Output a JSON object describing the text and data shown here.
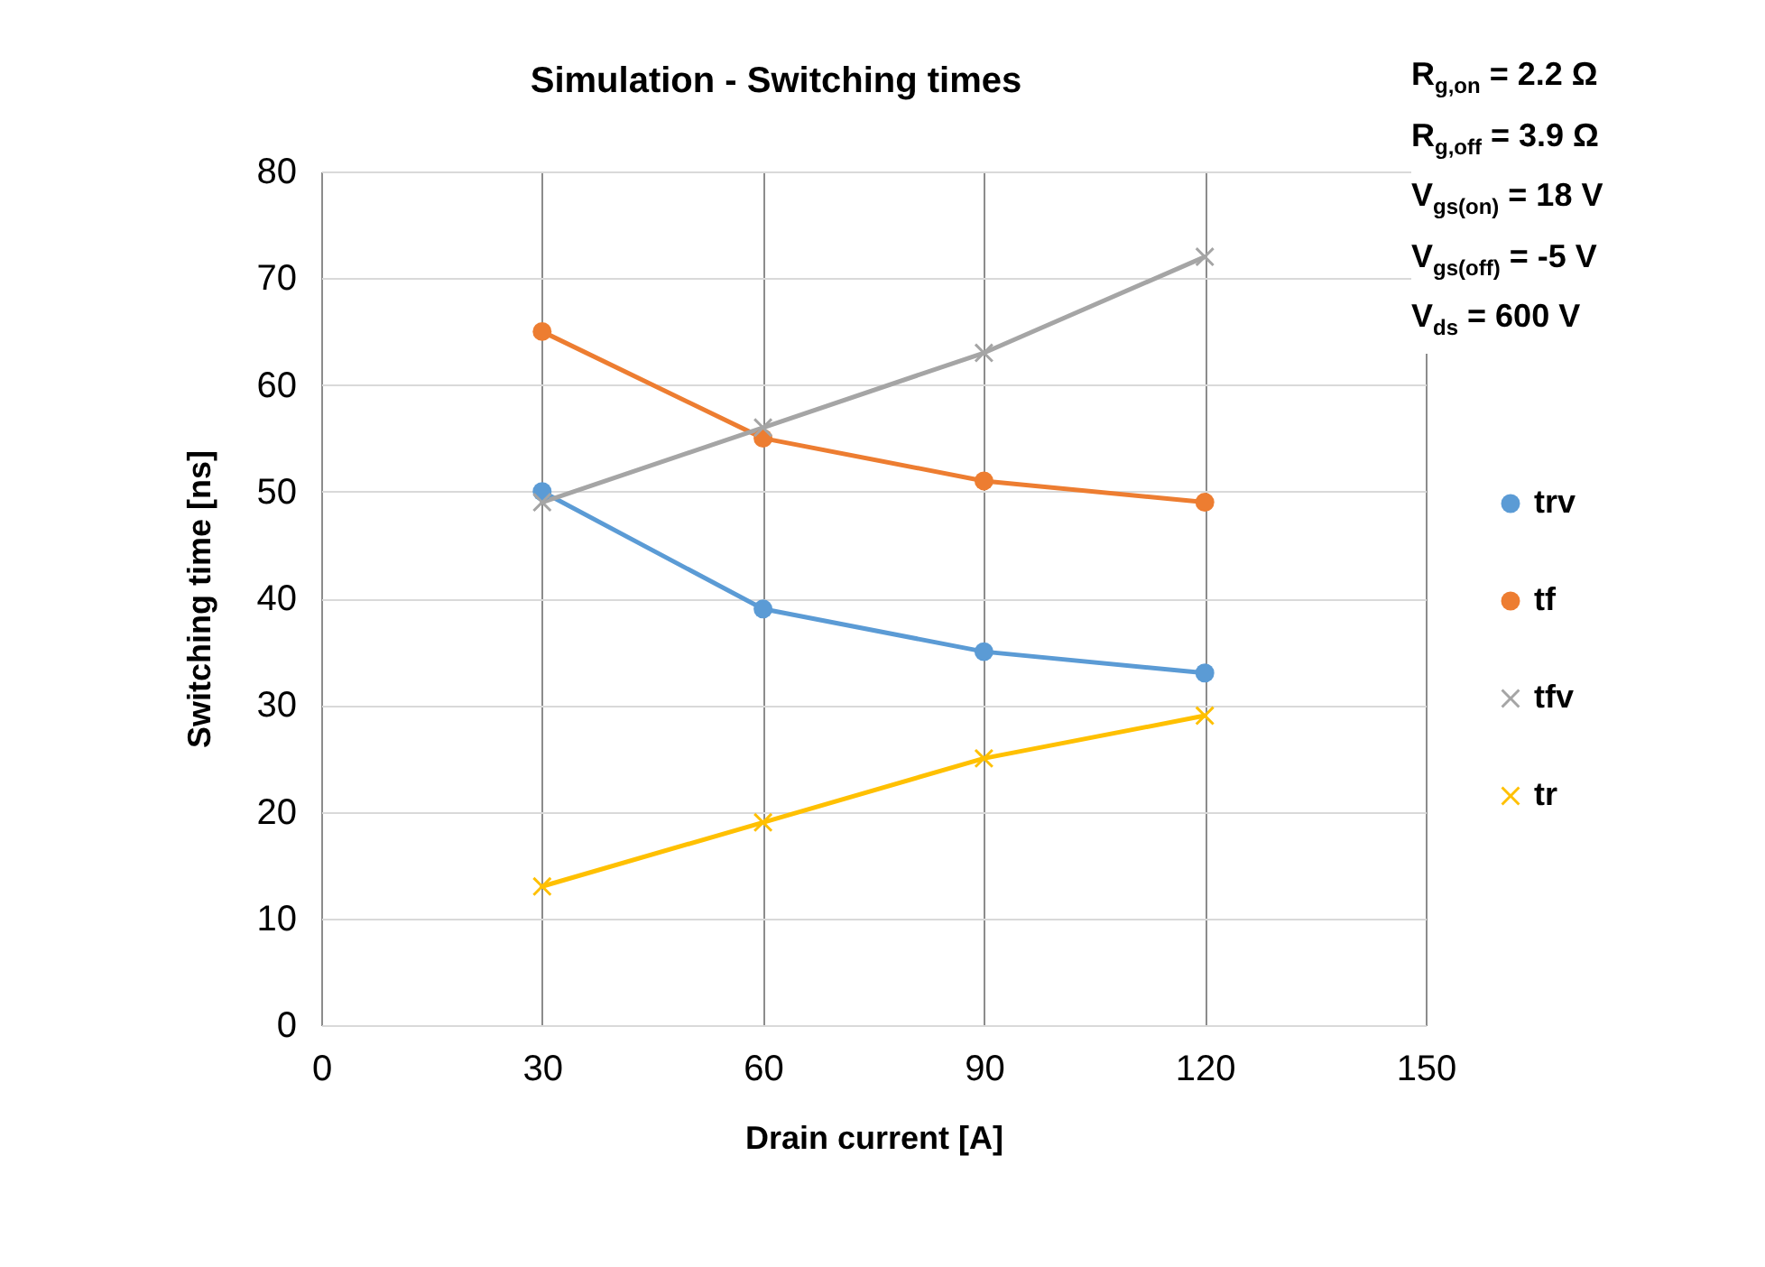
{
  "chart_data": {
    "type": "line",
    "title": "Simulation - Switching times",
    "xlabel": "Drain current [A]",
    "ylabel": "Switching time [ns]",
    "annotations": [
      "R$_{g,on}$ = 2.2 Ω",
      "R$_{g,off}$ = 3.9 Ω",
      "V$_{gs(on)}$ = 18 V",
      "V$_{gs(off)}$ = -5 V",
      "V$_{ds}$ = 600 V"
    ],
    "x": [
      30,
      60,
      90,
      120
    ],
    "series": [
      {
        "name": "trv",
        "color": "#5b9bd5",
        "marker": "circle",
        "values": [
          50,
          39,
          35,
          33
        ]
      },
      {
        "name": "tf",
        "color": "#ed7d31",
        "marker": "circle",
        "values": [
          65,
          55,
          51,
          49
        ]
      },
      {
        "name": "tfv",
        "color": "#a5a5a5",
        "marker": "cross",
        "values": [
          49,
          56,
          63,
          72
        ]
      },
      {
        "name": "tr",
        "color": "#ffc000",
        "marker": "cross",
        "values": [
          13,
          19,
          25,
          29
        ]
      }
    ],
    "xlim": [
      0,
      150
    ],
    "xticks": [
      0,
      30,
      60,
      90,
      120,
      150
    ],
    "ylim": [
      0,
      80
    ],
    "yticks": [
      0,
      10,
      20,
      30,
      40,
      50,
      60,
      70,
      80
    ],
    "grid": true,
    "legend": "right"
  }
}
